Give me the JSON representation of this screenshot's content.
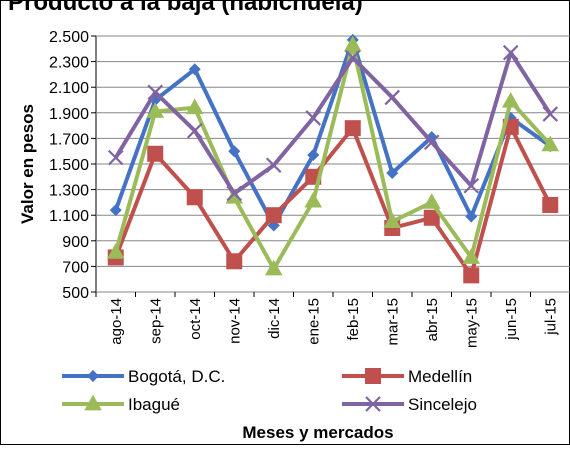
{
  "chart_data": {
    "type": "line",
    "title": "Producto a la baja (habichuela)",
    "xlabel": "Meses y mercados",
    "ylabel": "Valor en pesos",
    "ylim": [
      500,
      2500
    ],
    "yticks": [
      500,
      700,
      900,
      1100,
      1300,
      1500,
      1700,
      1900,
      2100,
      2300,
      2500
    ],
    "ytick_labels": [
      "500",
      "700",
      "900",
      "1.100",
      "1.300",
      "1.500",
      "1.700",
      "1.900",
      "2.100",
      "2.300",
      "2.500"
    ],
    "categories": [
      "ago-14",
      "sep-14",
      "oct-14",
      "nov-14",
      "dic-14",
      "ene-15",
      "feb-15",
      "mar-15",
      "abr-15",
      "may-15",
      "jun-15",
      "jul-15"
    ],
    "grid": true,
    "legend": "bottom",
    "series": [
      {
        "name": "Bogotá, D.C.",
        "color": "#4472C4",
        "marker": "diamond",
        "values": [
          1140,
          2000,
          2240,
          1600,
          1020,
          1570,
          2470,
          1430,
          1710,
          1090,
          1860,
          1640
        ]
      },
      {
        "name": "Medellín",
        "color": "#C0504D",
        "marker": "square",
        "values": [
          770,
          1580,
          1240,
          740,
          1100,
          1400,
          1780,
          1000,
          1080,
          630,
          1790,
          1180
        ]
      },
      {
        "name": "Ibagué",
        "color": "#9BBB59",
        "marker": "triangle",
        "values": [
          810,
          1910,
          1940,
          1240,
          680,
          1210,
          2430,
          1050,
          1200,
          770,
          1990,
          1650
        ]
      },
      {
        "name": "Sincelejo",
        "color": "#8064A2",
        "marker": "x",
        "values": [
          1550,
          2060,
          1760,
          1270,
          1490,
          1860,
          2330,
          2020,
          1670,
          1330,
          2370,
          1890
        ]
      }
    ]
  }
}
